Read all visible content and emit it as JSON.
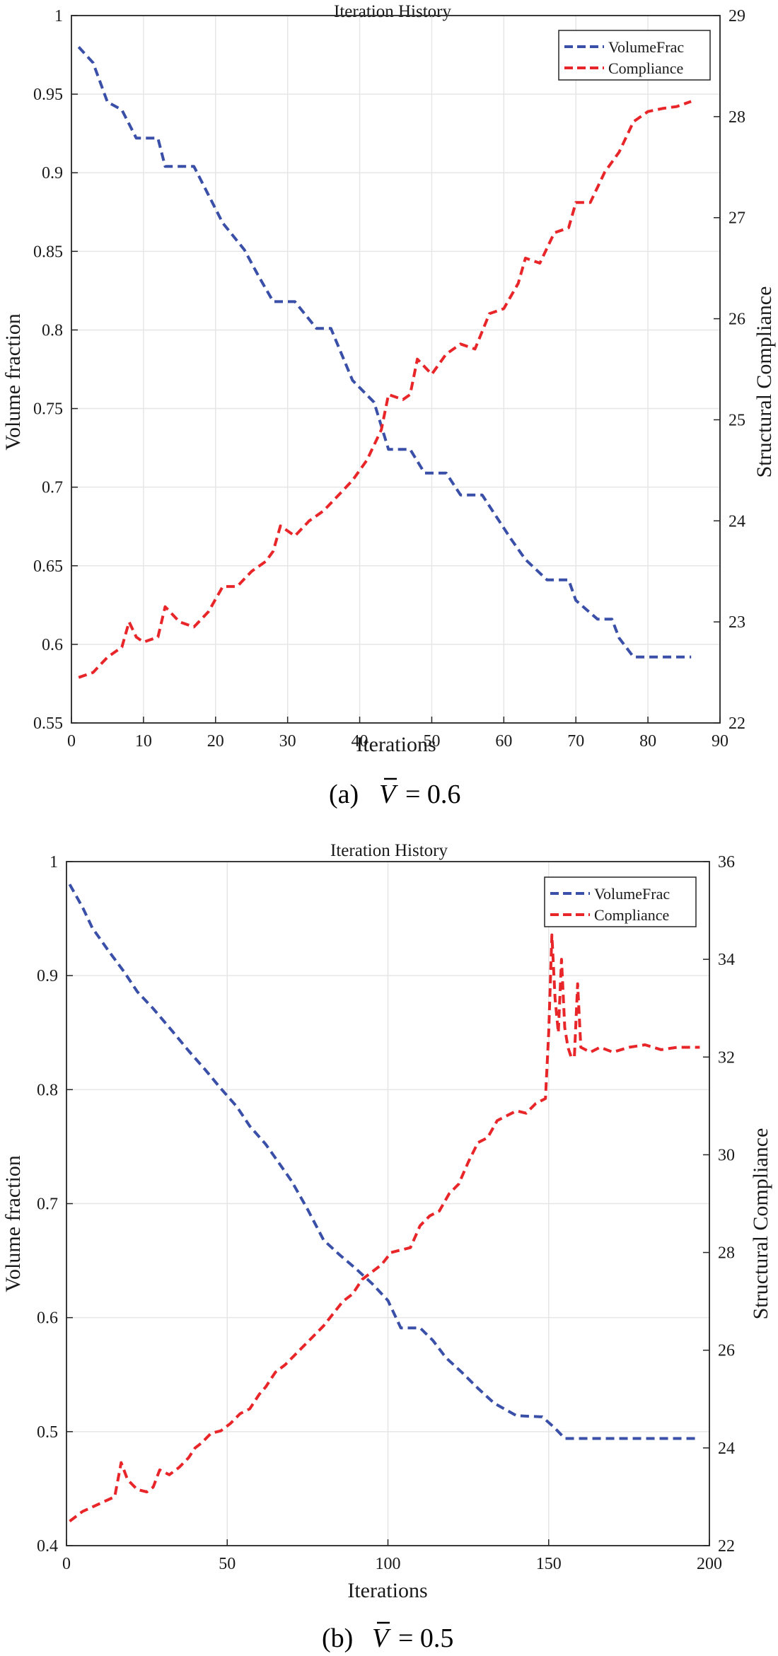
{
  "chart_data": [
    {
      "type": "line",
      "title": "Iteration History",
      "xlabel": "Iterations",
      "ylabel": "Volume fraction",
      "y2label": "Structural Compliance",
      "caption_prefix": "(a)",
      "caption_value": "= 0.6",
      "xlim": [
        0,
        90
      ],
      "ylim": [
        0.55,
        1
      ],
      "y2lim": [
        22,
        29
      ],
      "xticks": [
        "0",
        "10",
        "20",
        "30",
        "40",
        "50",
        "60",
        "70",
        "80",
        "90"
      ],
      "yticks": [
        "0.55",
        "0.6",
        "0.65",
        "0.7",
        "0.75",
        "0.8",
        "0.85",
        "0.9",
        "0.95",
        "1"
      ],
      "y2ticks": [
        "22",
        "23",
        "24",
        "25",
        "26",
        "27",
        "28",
        "29"
      ],
      "grid": true,
      "legend_position": "top-right",
      "series": [
        {
          "name": "VolumeFrac",
          "axis": "left",
          "color": "#3a4fa8",
          "style": "dashed",
          "points": [
            [
              1,
              0.98
            ],
            [
              3,
              0.97
            ],
            [
              5,
              0.945
            ],
            [
              7,
              0.94
            ],
            [
              9,
              0.922
            ],
            [
              12,
              0.922
            ],
            [
              13,
              0.904
            ],
            [
              17,
              0.904
            ],
            [
              19,
              0.886
            ],
            [
              21,
              0.868
            ],
            [
              24,
              0.851
            ],
            [
              26,
              0.834
            ],
            [
              28,
              0.818
            ],
            [
              31,
              0.818
            ],
            [
              34,
              0.801
            ],
            [
              36,
              0.801
            ],
            [
              39,
              0.768
            ],
            [
              42,
              0.754
            ],
            [
              44,
              0.724
            ],
            [
              47,
              0.724
            ],
            [
              49,
              0.709
            ],
            [
              52,
              0.709
            ],
            [
              54,
              0.695
            ],
            [
              57,
              0.695
            ],
            [
              59,
              0.681
            ],
            [
              61,
              0.667
            ],
            [
              63,
              0.654
            ],
            [
              66,
              0.641
            ],
            [
              69,
              0.641
            ],
            [
              70,
              0.628
            ],
            [
              73,
              0.616
            ],
            [
              75,
              0.616
            ],
            [
              76,
              0.604
            ],
            [
              78,
              0.592
            ],
            [
              86,
              0.592
            ]
          ]
        },
        {
          "name": "Compliance",
          "axis": "right",
          "color": "#e8262a",
          "style": "dashed",
          "points": [
            [
              1,
              22.45
            ],
            [
              3,
              22.5
            ],
            [
              5,
              22.65
            ],
            [
              7,
              22.75
            ],
            [
              8,
              23.0
            ],
            [
              9,
              22.85
            ],
            [
              10,
              22.8
            ],
            [
              12,
              22.85
            ],
            [
              13,
              23.15
            ],
            [
              15,
              23.0
            ],
            [
              17,
              22.95
            ],
            [
              19,
              23.1
            ],
            [
              21,
              23.35
            ],
            [
              23,
              23.35
            ],
            [
              25,
              23.5
            ],
            [
              27,
              23.6
            ],
            [
              28,
              23.7
            ],
            [
              29,
              23.95
            ],
            [
              31,
              23.85
            ],
            [
              33,
              24.0
            ],
            [
              35,
              24.1
            ],
            [
              37,
              24.25
            ],
            [
              39,
              24.4
            ],
            [
              41,
              24.6
            ],
            [
              43,
              24.9
            ],
            [
              44,
              25.25
            ],
            [
              46,
              25.2
            ],
            [
              47,
              25.25
            ],
            [
              48,
              25.6
            ],
            [
              50,
              25.45
            ],
            [
              52,
              25.65
            ],
            [
              54,
              25.75
            ],
            [
              56,
              25.7
            ],
            [
              58,
              26.05
            ],
            [
              60,
              26.1
            ],
            [
              62,
              26.35
            ],
            [
              63,
              26.6
            ],
            [
              65,
              26.55
            ],
            [
              67,
              26.85
            ],
            [
              69,
              26.9
            ],
            [
              70,
              27.15
            ],
            [
              72,
              27.15
            ],
            [
              74,
              27.45
            ],
            [
              76,
              27.65
            ],
            [
              78,
              27.95
            ],
            [
              80,
              28.05
            ],
            [
              82,
              28.08
            ],
            [
              84,
              28.1
            ],
            [
              86,
              28.15
            ]
          ]
        }
      ]
    },
    {
      "type": "line",
      "title": "Iteration History",
      "xlabel": "Iterations",
      "ylabel": "Volume fraction",
      "y2label": "Structural Compliance",
      "caption_prefix": "(b)",
      "caption_value": "= 0.5",
      "xlim": [
        0,
        200
      ],
      "ylim": [
        0.4,
        1
      ],
      "y2lim": [
        22,
        36
      ],
      "xticks": [
        "0",
        "50",
        "100",
        "150",
        "200"
      ],
      "yticks": [
        "0.4",
        "0.5",
        "0.6",
        "0.7",
        "0.8",
        "0.9",
        "1"
      ],
      "y2ticks": [
        "22",
        "24",
        "26",
        "28",
        "30",
        "32",
        "34",
        "36"
      ],
      "grid": true,
      "legend_position": "top-right",
      "series": [
        {
          "name": "VolumeFrac",
          "axis": "left",
          "color": "#3a4fa8",
          "style": "dashed",
          "points": [
            [
              1,
              0.98
            ],
            [
              5,
              0.96
            ],
            [
              8,
              0.942
            ],
            [
              13,
              0.922
            ],
            [
              18,
              0.903
            ],
            [
              22,
              0.886
            ],
            [
              27,
              0.871
            ],
            [
              33,
              0.851
            ],
            [
              38,
              0.834
            ],
            [
              43,
              0.818
            ],
            [
              48,
              0.801
            ],
            [
              53,
              0.785
            ],
            [
              57,
              0.768
            ],
            [
              62,
              0.752
            ],
            [
              66,
              0.736
            ],
            [
              70,
              0.72
            ],
            [
              75,
              0.695
            ],
            [
              80,
              0.668
            ],
            [
              85,
              0.655
            ],
            [
              90,
              0.643
            ],
            [
              95,
              0.63
            ],
            [
              100,
              0.615
            ],
            [
              104,
              0.591
            ],
            [
              110,
              0.591
            ],
            [
              114,
              0.58
            ],
            [
              118,
              0.565
            ],
            [
              123,
              0.552
            ],
            [
              128,
              0.538
            ],
            [
              133,
              0.525
            ],
            [
              140,
              0.514
            ],
            [
              148,
              0.513
            ],
            [
              152,
              0.503
            ],
            [
              155,
              0.494
            ],
            [
              197,
              0.494
            ]
          ]
        },
        {
          "name": "Compliance",
          "axis": "right",
          "color": "#e8262a",
          "style": "dashed",
          "points": [
            [
              1,
              22.5
            ],
            [
              5,
              22.7
            ],
            [
              10,
              22.85
            ],
            [
              15,
              23.0
            ],
            [
              17,
              23.7
            ],
            [
              19,
              23.35
            ],
            [
              22,
              23.15
            ],
            [
              25,
              23.1
            ],
            [
              27,
              23.2
            ],
            [
              29,
              23.55
            ],
            [
              32,
              23.45
            ],
            [
              35,
              23.6
            ],
            [
              38,
              23.8
            ],
            [
              40,
              24.0
            ],
            [
              42,
              24.1
            ],
            [
              45,
              24.3
            ],
            [
              48,
              24.35
            ],
            [
              51,
              24.5
            ],
            [
              54,
              24.7
            ],
            [
              57,
              24.8
            ],
            [
              60,
              25.1
            ],
            [
              62,
              25.25
            ],
            [
              65,
              25.55
            ],
            [
              68,
              25.7
            ],
            [
              71,
              25.9
            ],
            [
              74,
              26.1
            ],
            [
              77,
              26.3
            ],
            [
              80,
              26.5
            ],
            [
              83,
              26.75
            ],
            [
              86,
              27.0
            ],
            [
              89,
              27.15
            ],
            [
              92,
              27.45
            ],
            [
              95,
              27.6
            ],
            [
              98,
              27.75
            ],
            [
              101,
              28.0
            ],
            [
              104,
              28.05
            ],
            [
              107,
              28.1
            ],
            [
              110,
              28.55
            ],
            [
              113,
              28.75
            ],
            [
              116,
              28.85
            ],
            [
              119,
              29.2
            ],
            [
              122,
              29.4
            ],
            [
              125,
              29.85
            ],
            [
              128,
              30.25
            ],
            [
              131,
              30.35
            ],
            [
              134,
              30.7
            ],
            [
              137,
              30.8
            ],
            [
              140,
              30.9
            ],
            [
              143,
              30.85
            ],
            [
              146,
              31.05
            ],
            [
              149,
              31.15
            ],
            [
              150,
              32.5
            ],
            [
              151,
              34.5
            ],
            [
              152,
              33.2
            ],
            [
              153,
              32.5
            ],
            [
              154,
              34.0
            ],
            [
              155,
              32.6
            ],
            [
              156,
              32.2
            ],
            [
              157,
              32.0
            ],
            [
              158,
              32.0
            ],
            [
              159,
              33.5
            ],
            [
              160,
              32.2
            ],
            [
              163,
              32.1
            ],
            [
              166,
              32.2
            ],
            [
              170,
              32.1
            ],
            [
              175,
              32.2
            ],
            [
              180,
              32.25
            ],
            [
              185,
              32.15
            ],
            [
              190,
              32.2
            ],
            [
              197,
              32.2
            ]
          ]
        }
      ]
    }
  ]
}
